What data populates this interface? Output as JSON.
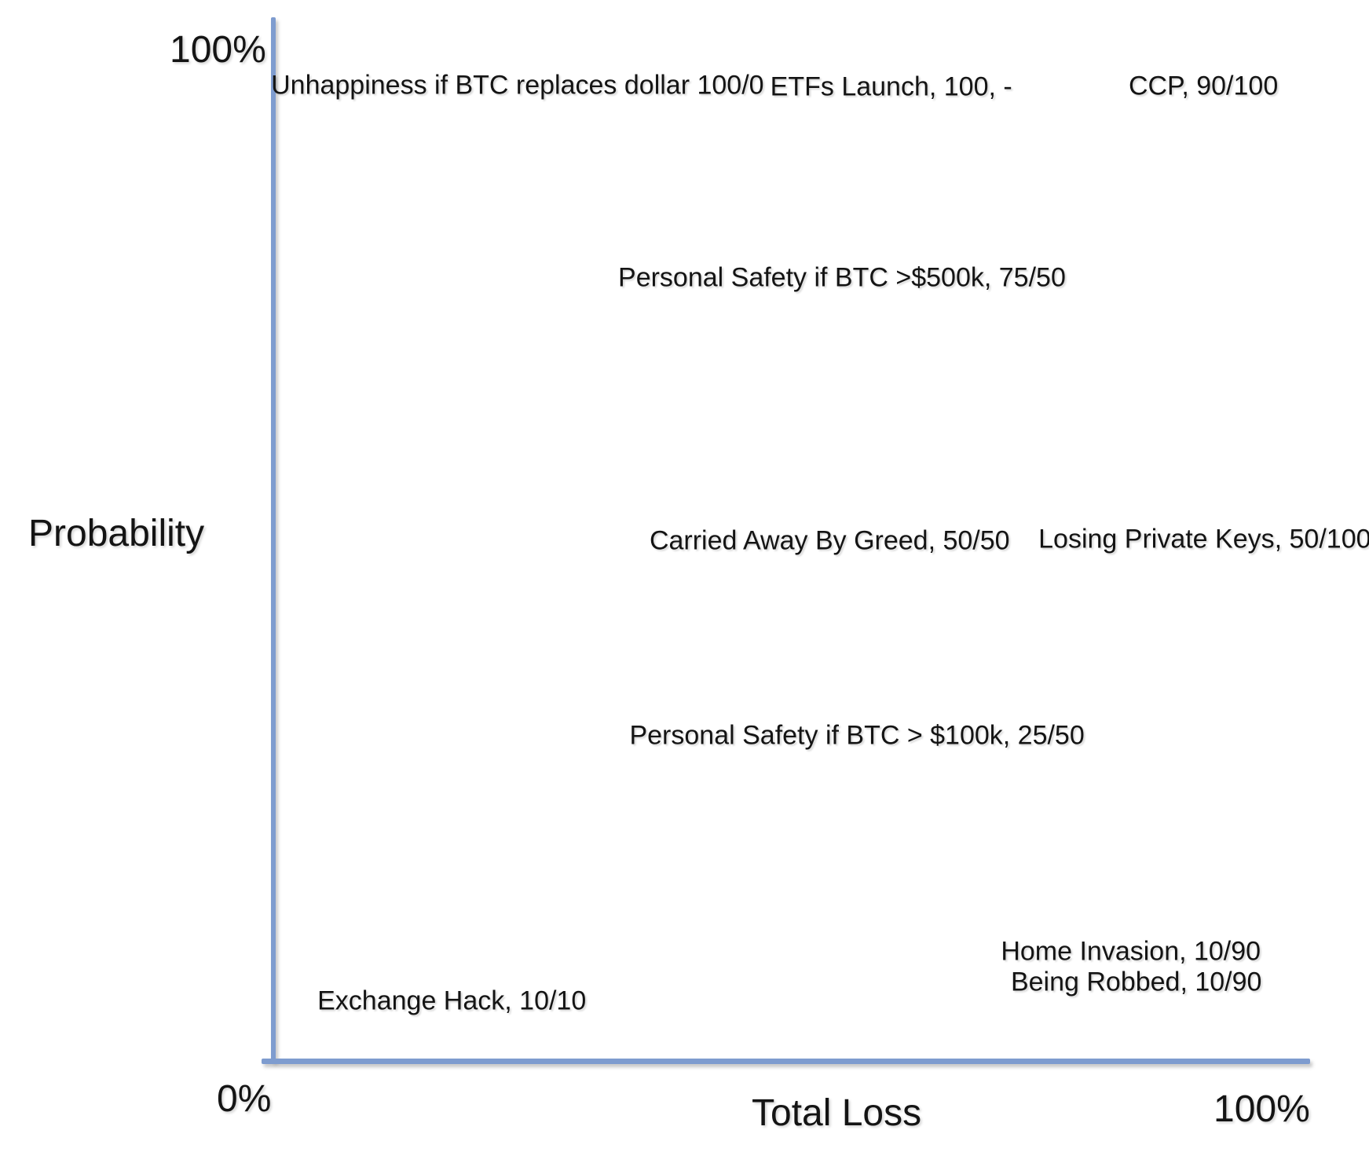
{
  "page": {
    "background_color": "#ffffff",
    "text_color": "#141414"
  },
  "chart_data": {
    "type": "scatter",
    "title": "",
    "xlabel": "Total Loss",
    "ylabel": "Probability",
    "axis_color": "#7e9ccf",
    "grid": false,
    "legend": false,
    "x_axis": {
      "min_label": "0%",
      "max_label": "100%",
      "range_pct": [
        0,
        100
      ]
    },
    "y_axis": {
      "min_label": "0%",
      "max_label": "100%",
      "range_pct": [
        0,
        100
      ]
    },
    "points": [
      {
        "label": "Unhappiness if BTC replaces dollar 100/0",
        "name": "Unhappiness if BTC replaces dollar",
        "probability_pct": 100,
        "total_loss_pct": 0,
        "x_pct": 37.8,
        "y_pct": 7.4
      },
      {
        "label": "ETFs Launch, 100, -",
        "name": "ETFs Launch",
        "probability_pct": 100,
        "total_loss_pct": null,
        "x_pct": 65.1,
        "y_pct": 7.6
      },
      {
        "label": "CCP, 90/100",
        "name": "CCP",
        "probability_pct": 90,
        "total_loss_pct": 100,
        "x_pct": 87.9,
        "y_pct": 7.5
      },
      {
        "label": "Personal Safety if BTC >$500k, 75/50",
        "name": "Personal Safety if BTC >$500k",
        "probability_pct": 75,
        "total_loss_pct": 50,
        "x_pct": 61.5,
        "y_pct": 24.1
      },
      {
        "label": "Carried Away By Greed, 50/50",
        "name": "Carried Away By Greed",
        "probability_pct": 50,
        "total_loss_pct": 50,
        "x_pct": 60.6,
        "y_pct": 47.0
      },
      {
        "label": "Losing Private Keys, 50/100",
        "name": "Losing Private Keys",
        "probability_pct": 50,
        "total_loss_pct": 100,
        "x_pct": 88.0,
        "y_pct": 46.8
      },
      {
        "label": "Personal Safety if BTC > $100k, 25/50",
        "name": "Personal Safety if BTC > $100k",
        "probability_pct": 25,
        "total_loss_pct": 50,
        "x_pct": 62.6,
        "y_pct": 63.9
      },
      {
        "label": "Home Invasion, 10/90",
        "name": "Home Invasion",
        "probability_pct": 10,
        "total_loss_pct": 90,
        "x_pct": 82.6,
        "y_pct": 82.6
      },
      {
        "label": "Being Robbed, 10/90",
        "name": "Being Robbed",
        "probability_pct": 10,
        "total_loss_pct": 90,
        "x_pct": 83.0,
        "y_pct": 85.3
      },
      {
        "label": "Exchange Hack, 10/10",
        "name": "Exchange Hack",
        "probability_pct": 10,
        "total_loss_pct": 10,
        "x_pct": 33.0,
        "y_pct": 86.9
      }
    ]
  }
}
